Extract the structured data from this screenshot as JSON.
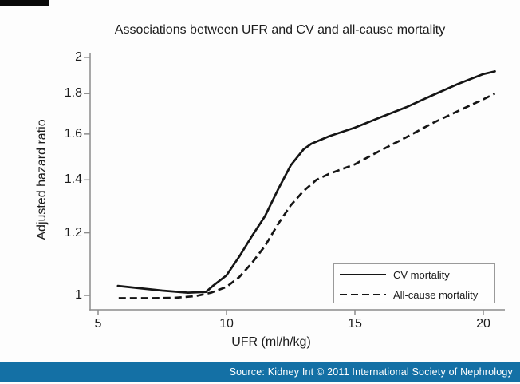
{
  "page": {
    "source_text": "Source: Kidney Int © 2011 International Society of Nephrology",
    "source_bar_color": "#1470a5",
    "background_color": "#fdfdfd",
    "curve_color": "#151515",
    "axis_color": "#8c8c8c"
  },
  "chart_data": {
    "type": "line",
    "title": "Associations between UFR and CV and all-cause mortality",
    "xlabel": "UFR (ml/h/kg)",
    "ylabel": "Adjusted hazard ratio",
    "x_scale": "linear",
    "y_scale": "log",
    "xlim": [
      4.7,
      21
    ],
    "ylim": [
      0.96,
      2.05
    ],
    "x_ticks": [
      5,
      10,
      15,
      20
    ],
    "x_tick_labels": [
      "5",
      "10",
      "15",
      "20"
    ],
    "y_ticks": [
      1,
      1.2,
      1.4,
      1.6,
      1.8,
      2
    ],
    "y_tick_labels": [
      "1",
      "1.2",
      "1.4",
      "1.6",
      "1.8",
      "2"
    ],
    "grid": false,
    "legend": {
      "position": "bottom-right",
      "entries": [
        "CV mortality",
        "All-cause mortality"
      ]
    },
    "series": [
      {
        "name": "CV mortality",
        "style": "solid",
        "color": "#151515",
        "points": [
          [
            5.77,
            1.028
          ],
          [
            6.5,
            1.022
          ],
          [
            7.5,
            1.014
          ],
          [
            8.5,
            1.008
          ],
          [
            9.2,
            1.01
          ],
          [
            9.5,
            1.03
          ],
          [
            10.0,
            1.06
          ],
          [
            10.5,
            1.12
          ],
          [
            11.0,
            1.19
          ],
          [
            11.5,
            1.26
          ],
          [
            12.0,
            1.36
          ],
          [
            12.5,
            1.46
          ],
          [
            13.0,
            1.53
          ],
          [
            13.3,
            1.555
          ],
          [
            14.0,
            1.59
          ],
          [
            15.0,
            1.63
          ],
          [
            16.0,
            1.68
          ],
          [
            17.0,
            1.73
          ],
          [
            18.0,
            1.79
          ],
          [
            19.0,
            1.85
          ],
          [
            20.0,
            1.905
          ],
          [
            20.45,
            1.92
          ]
        ]
      },
      {
        "name": "All-cause mortality",
        "style": "dashed",
        "color": "#151515",
        "points": [
          [
            5.8,
            0.992
          ],
          [
            7.0,
            0.992
          ],
          [
            8.0,
            0.993
          ],
          [
            8.8,
            0.998
          ],
          [
            9.4,
            1.008
          ],
          [
            10.0,
            1.025
          ],
          [
            10.5,
            1.055
          ],
          [
            11.0,
            1.1
          ],
          [
            11.5,
            1.155
          ],
          [
            12.0,
            1.23
          ],
          [
            12.5,
            1.3
          ],
          [
            13.0,
            1.355
          ],
          [
            13.5,
            1.4
          ],
          [
            14.0,
            1.425
          ],
          [
            15.0,
            1.465
          ],
          [
            16.0,
            1.525
          ],
          [
            17.0,
            1.585
          ],
          [
            18.0,
            1.65
          ],
          [
            19.0,
            1.71
          ],
          [
            20.0,
            1.77
          ],
          [
            20.45,
            1.8
          ]
        ]
      }
    ]
  }
}
